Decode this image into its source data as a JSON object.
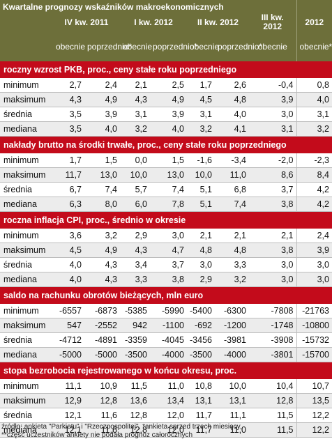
{
  "title": "Kwartalne prognozy wskaźników makroekonomicznych",
  "periods": [
    "IV kw. 2011",
    "I kw. 2012",
    "II kw. 2012",
    "III kw. 2012",
    "2012"
  ],
  "sub": {
    "obecnie": "obecnie",
    "poprzednio": "poprzednio*",
    "obecnie_star": "obecnie**"
  },
  "sections": [
    {
      "title": "roczny wzrost PKB, proc., ceny stałe roku poprzedniego",
      "rows": [
        {
          "label": "minimum",
          "values": [
            "2,7",
            "2,4",
            "2,1",
            "2,5",
            "1,7",
            "2,6",
            "-0,4",
            "0,8"
          ]
        },
        {
          "label": "maksimum",
          "values": [
            "4,3",
            "4,9",
            "4,3",
            "4,9",
            "4,5",
            "4,8",
            "3,9",
            "4,0"
          ]
        },
        {
          "label": "średnia",
          "values": [
            "3,5",
            "3,9",
            "3,1",
            "3,9",
            "3,1",
            "4,0",
            "3,0",
            "3,1"
          ]
        },
        {
          "label": "mediana",
          "values": [
            "3,5",
            "4,0",
            "3,2",
            "4,0",
            "3,2",
            "4,1",
            "3,1",
            "3,2"
          ]
        }
      ]
    },
    {
      "title": "nakłady brutto na środki trwałe, proc., ceny stałe roku poprzedniego",
      "rows": [
        {
          "label": "minimum",
          "values": [
            "1,7",
            "1,5",
            "0,0",
            "1,5",
            "-1,6",
            "-3,4",
            "-2,0",
            "-2,3"
          ]
        },
        {
          "label": "maksimum",
          "values": [
            "11,7",
            "13,0",
            "10,0",
            "13,0",
            "10,0",
            "11,0",
            "8,6",
            "8,4"
          ]
        },
        {
          "label": "średnia",
          "values": [
            "6,7",
            "7,4",
            "5,7",
            "7,4",
            "5,1",
            "6,8",
            "3,7",
            "4,2"
          ]
        },
        {
          "label": "mediana",
          "values": [
            "6,3",
            "8,0",
            "6,0",
            "7,8",
            "5,1",
            "7,4",
            "3,8",
            "4,2"
          ]
        }
      ]
    },
    {
      "title": "roczna inflacja CPI, proc., średnio w okresie",
      "rows": [
        {
          "label": "minimum",
          "values": [
            "3,6",
            "3,2",
            "2,9",
            "3,0",
            "2,1",
            "2,1",
            "2,1",
            "2,4"
          ]
        },
        {
          "label": "maksimum",
          "values": [
            "4,5",
            "4,9",
            "4,3",
            "4,7",
            "4,8",
            "4,8",
            "3,8",
            "3,9"
          ]
        },
        {
          "label": "średnia",
          "values": [
            "4,0",
            "4,3",
            "3,4",
            "3,7",
            "3,0",
            "3,3",
            "3,0",
            "3,0"
          ]
        },
        {
          "label": "mediana",
          "values": [
            "4,0",
            "4,3",
            "3,3",
            "3,8",
            "2,9",
            "3,2",
            "3,0",
            "3,0"
          ]
        }
      ]
    },
    {
      "title": "saldo na rachunku obrotów bieżących, mln euro",
      "rows": [
        {
          "label": "minimum",
          "values": [
            "-6557",
            "-6873",
            "-5385",
            "-5990",
            "-5400",
            "-6300",
            "-7808",
            "-21763"
          ]
        },
        {
          "label": "maksimum",
          "values": [
            "547",
            "-2552",
            "942",
            "-1100",
            "-692",
            "-1200",
            "-1748",
            "-10800"
          ]
        },
        {
          "label": "średnia",
          "values": [
            "-4712",
            "-4891",
            "-3359",
            "-4045",
            "-3456",
            "-3981",
            "-3908",
            "-15732"
          ]
        },
        {
          "label": "mediana",
          "values": [
            "-5000",
            "-5000",
            "-3500",
            "-4000",
            "-3500",
            "-4000",
            "-3801",
            "-15700"
          ]
        }
      ]
    },
    {
      "title": "stopa bezrobocia rejestrowanego w końcu okresu, proc.",
      "rows": [
        {
          "label": "minimum",
          "values": [
            "11,1",
            "10,9",
            "11,5",
            "11,0",
            "10,8",
            "10,0",
            "10,4",
            "10,7"
          ]
        },
        {
          "label": "maksimum",
          "values": [
            "12,9",
            "12,8",
            "13,6",
            "13,4",
            "13,1",
            "13,1",
            "12,8",
            "13,5"
          ]
        },
        {
          "label": "średnia",
          "values": [
            "12,1",
            "11,6",
            "12,8",
            "12,0",
            "11,7",
            "11,1",
            "11,5",
            "12,2"
          ]
        },
        {
          "label": "mediana",
          "values": [
            "12,1",
            "11,6",
            "12,8",
            "12,0",
            "11,7",
            "11,0",
            "11,5",
            "12,2"
          ]
        }
      ]
    }
  ],
  "footer": {
    "line1": "źródło: ankieta \"Parkietu\" i \"Rzeczpospolitej\", *ankieta sprzed trzech miesięcy,",
    "line2": "**część uczestników ankiety nie podała prognoz całorocznych"
  },
  "colors": {
    "header_bg": "#6d6f3a",
    "section_bg": "#c30b1b",
    "row_alt_bg": "#ececec"
  }
}
